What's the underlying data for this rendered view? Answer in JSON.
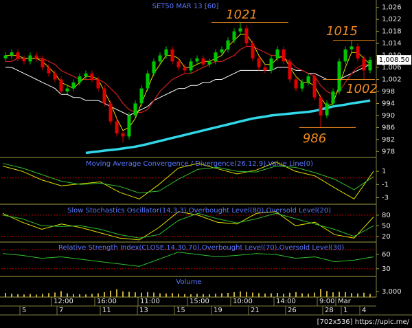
{
  "chart_data": [
    {
      "type": "candlestick",
      "title": "SET50 MAR 13  [60]",
      "open": [
        1009,
        1010,
        1011,
        1009,
        1008,
        1010,
        1009,
        1006,
        1004,
        1002,
        998,
        999,
        1001,
        1003,
        1004,
        1002,
        999,
        994,
        988,
        984,
        983,
        990,
        994,
        999,
        1004,
        1008,
        1010,
        1012,
        1008,
        1006,
        1005,
        1008,
        1009,
        1007,
        1008,
        1011,
        1012,
        1015,
        1018,
        1019,
        1014,
        1009,
        1006,
        1005,
        1009,
        1012,
        1008,
        1002,
        999,
        1001,
        1003,
        996,
        990,
        994,
        998,
        1008,
        1012,
        1013,
        1009,
        1005
      ],
      "high": [
        1011,
        1012,
        1012,
        1010,
        1011,
        1011,
        1010,
        1007,
        1005,
        1003,
        1000,
        1002,
        1004,
        1005,
        1005,
        1003,
        1000,
        995,
        989,
        985,
        991,
        995,
        1000,
        1005,
        1009,
        1011,
        1013,
        1013,
        1009,
        1007,
        1009,
        1010,
        1010,
        1009,
        1012,
        1013,
        1016,
        1019,
        1021,
        1020,
        1015,
        1010,
        1007,
        1010,
        1013,
        1013,
        1009,
        1003,
        1002,
        1004,
        1004,
        997,
        995,
        999,
        1009,
        1013,
        1015,
        1014,
        1010,
        1009.5
      ],
      "low": [
        1008,
        1009,
        1008,
        1007,
        1007,
        1008,
        1005,
        1003,
        1001,
        997,
        997,
        998,
        1000,
        1002,
        1001,
        998,
        993,
        987,
        983,
        981,
        982,
        989,
        993,
        998,
        1003,
        1007,
        1009,
        1007,
        1005,
        1004,
        1004,
        1007,
        1006,
        1006,
        1007,
        1010,
        1011,
        1014,
        1017,
        1013,
        1008,
        1005,
        1004,
        1004,
        1008,
        1007,
        1001,
        998,
        998,
        1000,
        995,
        986,
        989,
        993,
        997,
        1007,
        1011,
        1008,
        1002,
        1004
      ],
      "close": [
        1010,
        1011,
        1009,
        1008,
        1010,
        1009,
        1006,
        1004,
        1002,
        998,
        999,
        1001,
        1003,
        1004,
        1002,
        999,
        994,
        988,
        984,
        983,
        990,
        994,
        999,
        1004,
        1008,
        1010,
        1012,
        1008,
        1006,
        1005,
        1008,
        1009,
        1007,
        1008,
        1011,
        1012,
        1015,
        1018,
        1019,
        1014,
        1009,
        1006,
        1005,
        1009,
        1012,
        1008,
        1002,
        999,
        1001,
        1003,
        996,
        990,
        994,
        998,
        1008,
        1012,
        1013,
        1009,
        1005,
        1008.5
      ],
      "up_color": "#00c800",
      "down_color": "#e00000",
      "series": [
        {
          "color": "#ffffff",
          "width": 1,
          "values": [
            1006,
            1006,
            1005,
            1004,
            1003,
            1002,
            1001,
            1000,
            999,
            997,
            997,
            996,
            996,
            995,
            995,
            995,
            994,
            993,
            992,
            991,
            990,
            991,
            992,
            993,
            995,
            996,
            997,
            998,
            999,
            999,
            1000,
            1000,
            1001,
            1001,
            1002,
            1002,
            1003,
            1004,
            1005,
            1005,
            1005,
            1005,
            1005,
            1005,
            1006,
            1006,
            1006,
            1005,
            1005,
            1004,
            1004,
            1003,
            1002,
            1002,
            1002,
            1003,
            1004,
            1005,
            1006,
            1007
          ]
        },
        {
          "color": "#d02020",
          "width": 1.2,
          "values": [
            1008,
            1008,
            1009,
            1009,
            1009,
            1009,
            1009,
            1008,
            1007,
            1005,
            1004,
            1003,
            1002,
            1002,
            1002,
            1002,
            1001,
            999,
            997,
            994,
            992,
            991,
            991,
            992,
            995,
            998,
            1000,
            1002,
            1003,
            1004,
            1004,
            1005,
            1006,
            1007,
            1008,
            1008,
            1009,
            1010,
            1012,
            1013,
            1013,
            1012,
            1011,
            1010,
            1010,
            1009,
            1008,
            1006,
            1005,
            1004,
            1003,
            1000,
            998,
            997,
            998,
            1001,
            1004,
            1006,
            1007,
            1007
          ]
        },
        {
          "color": "#e0e000",
          "width": 1,
          "values": [
            1010,
            1010,
            1010,
            1009,
            1009,
            1009,
            1008,
            1006,
            1004,
            1001,
            1000,
            999,
            1001,
            1003,
            1003,
            1002,
            998,
            994,
            989,
            985,
            986,
            989,
            994,
            999,
            1004,
            1007,
            1010,
            1010,
            1009,
            1006,
            1006,
            1007,
            1008,
            1008,
            1009,
            1010,
            1013,
            1015,
            1017,
            1017,
            1014,
            1010,
            1007,
            1007,
            1009,
            1010,
            1006,
            1003,
            1001,
            1001,
            1000,
            996,
            993,
            994,
            1000,
            1006,
            1011,
            1011,
            1009,
            1007
          ]
        },
        {
          "color": "#30d8e8",
          "width": 3.5,
          "values": [
            null,
            null,
            null,
            null,
            null,
            null,
            null,
            null,
            null,
            null,
            null,
            null,
            null,
            977.5,
            977.8,
            978,
            978.3,
            978.5,
            978.7,
            979,
            979.3,
            979.6,
            980,
            980.5,
            981,
            981.5,
            982,
            982.5,
            983,
            983.5,
            984,
            984.5,
            985,
            985.5,
            986,
            986.5,
            987,
            987.5,
            988,
            988.5,
            989,
            989.3,
            989.6,
            990,
            990.2,
            990.4,
            990.6,
            990.8,
            991,
            991.2,
            991.5,
            992,
            992.5,
            993,
            993.3,
            993.6,
            994,
            994.3,
            994.6,
            995
          ]
        }
      ],
      "annotations": [
        1021,
        1015,
        1002,
        986
      ],
      "annotation_color": "#f08a20",
      "last_price": {
        "value": 1008.5,
        "label": "1,008.50"
      },
      "ylim": [
        976,
        1028
      ],
      "yticks": [
        {
          "value": 1026,
          "label": "1,026"
        },
        {
          "value": 1022,
          "label": "1,022"
        },
        {
          "value": 1018,
          "label": "1,018"
        },
        {
          "value": 1014,
          "label": "1,014"
        },
        {
          "value": 1010,
          "label": "1,010"
        },
        {
          "value": 1006,
          "label": "1,006"
        },
        {
          "value": 1002,
          "label": "1,002"
        },
        998,
        994,
        990,
        986,
        982,
        978
      ],
      "time_labels": [
        "12:00",
        "16:00",
        "11:00",
        "15:00",
        "10:00",
        "14:00",
        "9:00",
        "Mar"
      ],
      "day_labels": [
        "5",
        "7",
        "11",
        "13",
        "15",
        "19",
        "21",
        "26",
        "28",
        "1",
        "4"
      ]
    },
    {
      "type": "line",
      "title": "Moving Average Convergence / Divergence(26,12,9),Value Line(0)",
      "series": [
        {
          "color": "#e0e000",
          "values": [
            1.8,
            1.0,
            -0.3,
            -1.2,
            -0.9,
            -0.6,
            -2.2,
            -3.2,
            -1.0,
            1.5,
            2.2,
            1.4,
            0.6,
            1.2,
            2.4,
            1.0,
            0.3,
            -1.5,
            -3.2,
            1.0
          ]
        },
        {
          "color": "#30c030",
          "values": [
            2.2,
            1.5,
            0.5,
            -0.5,
            -1.0,
            -0.8,
            -1.3,
            -2.3,
            -2.0,
            -0.2,
            1.3,
            1.6,
            1.0,
            0.9,
            1.8,
            1.6,
            0.8,
            -0.2,
            -1.8,
            0.2
          ]
        }
      ],
      "levels": [
        0
      ],
      "level_color": "#c00000",
      "ylim": [
        -4,
        3
      ],
      "yticks": [
        1,
        -1,
        -3
      ]
    },
    {
      "type": "line",
      "title": "Slow Stochastics Oscillator(14,3,3),Overbought Level(80),Oversold Level(20)",
      "series": [
        {
          "color": "#e0e000",
          "values": [
            85,
            60,
            40,
            55,
            45,
            30,
            15,
            10,
            45,
            90,
            80,
            60,
            55,
            85,
            90,
            50,
            60,
            25,
            15,
            75
          ]
        },
        {
          "color": "#30c030",
          "values": [
            80,
            70,
            50,
            48,
            50,
            40,
            25,
            15,
            25,
            65,
            85,
            70,
            58,
            70,
            85,
            70,
            55,
            40,
            20,
            50
          ]
        }
      ],
      "levels": [
        80,
        20
      ],
      "level_color": "#c00000",
      "ylim": [
        4,
        109
      ],
      "yticks": [
        80,
        50,
        20
      ]
    },
    {
      "type": "line",
      "title": "Relative Strength Index(CLOSE,14,30,70),Overbought Level(70),Oversold Level(30)",
      "series": [
        {
          "color": "#30c030",
          "values": [
            62,
            58,
            52,
            55,
            50,
            45,
            40,
            35,
            50,
            65,
            60,
            55,
            58,
            62,
            60,
            52,
            55,
            45,
            48,
            55
          ]
        }
      ],
      "levels": [
        70,
        30
      ],
      "level_color": "#c00000",
      "ylim": [
        14,
        86
      ],
      "yticks": [
        60,
        30
      ]
    },
    {
      "type": "bar",
      "title": "Volume",
      "color": "#c8b040",
      "values": [
        2200,
        1800,
        1500,
        1400,
        1600,
        1300,
        1700,
        2100,
        2400,
        3200,
        2000,
        1600,
        1500,
        1400,
        1700,
        2000,
        2600,
        3400,
        4200,
        3000,
        2800,
        2500,
        2300,
        2600,
        2400,
        2000,
        1900,
        2100,
        1800,
        1600,
        1500,
        1700,
        1600,
        1500,
        1800,
        2000,
        2200,
        2600,
        3000,
        2700,
        2400,
        2100,
        1900,
        2000,
        2200,
        1800,
        2300,
        2600,
        2000,
        1800,
        2400,
        4300,
        3200,
        2500,
        2800,
        2600,
        2100,
        1900,
        2300,
        1700
      ],
      "ylim": [
        0,
        11000
      ],
      "yticks": [
        {
          "value": 3000,
          "label": "3,000"
        }
      ]
    }
  ],
  "watermark": "[702x536] https://upic.me/"
}
